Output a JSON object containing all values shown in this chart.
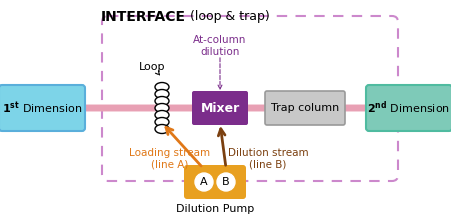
{
  "title_bold": "INTERFACE",
  "title_regular": " (loop & trap)",
  "mixer_label": "Mixer",
  "trap_label": "Trap column",
  "loop_label": "Loop",
  "atcol_label": "At-column\ndilution",
  "loading_label": "Loading stream\n(line A)",
  "dilution_label": "Dilution stream\n(line B)",
  "pump_label": "Dilution Pump",
  "pump_A": "A",
  "pump_B": "B",
  "color_dim1_bg": "#7DD4E8",
  "color_dim1_border": "#5AAFDB",
  "color_dim2_bg": "#7ECAB8",
  "color_dim2_border": "#4FBBA0",
  "color_mixer_bg": "#7B2D8B",
  "color_mixer_text": "#FFFFFF",
  "color_trap_bg": "#C8C8C8",
  "color_trap_border": "#999999",
  "color_main_arrow": "#E8A0B4",
  "color_interface_border": "#CC88CC",
  "color_atcol_arrow": "#7B2D8B",
  "color_loading_arrow": "#E07818",
  "color_dilution_arrow": "#7B4010",
  "color_pump_bg": "#E8A020",
  "figsize": [
    4.51,
    2.17
  ],
  "dpi": 100
}
